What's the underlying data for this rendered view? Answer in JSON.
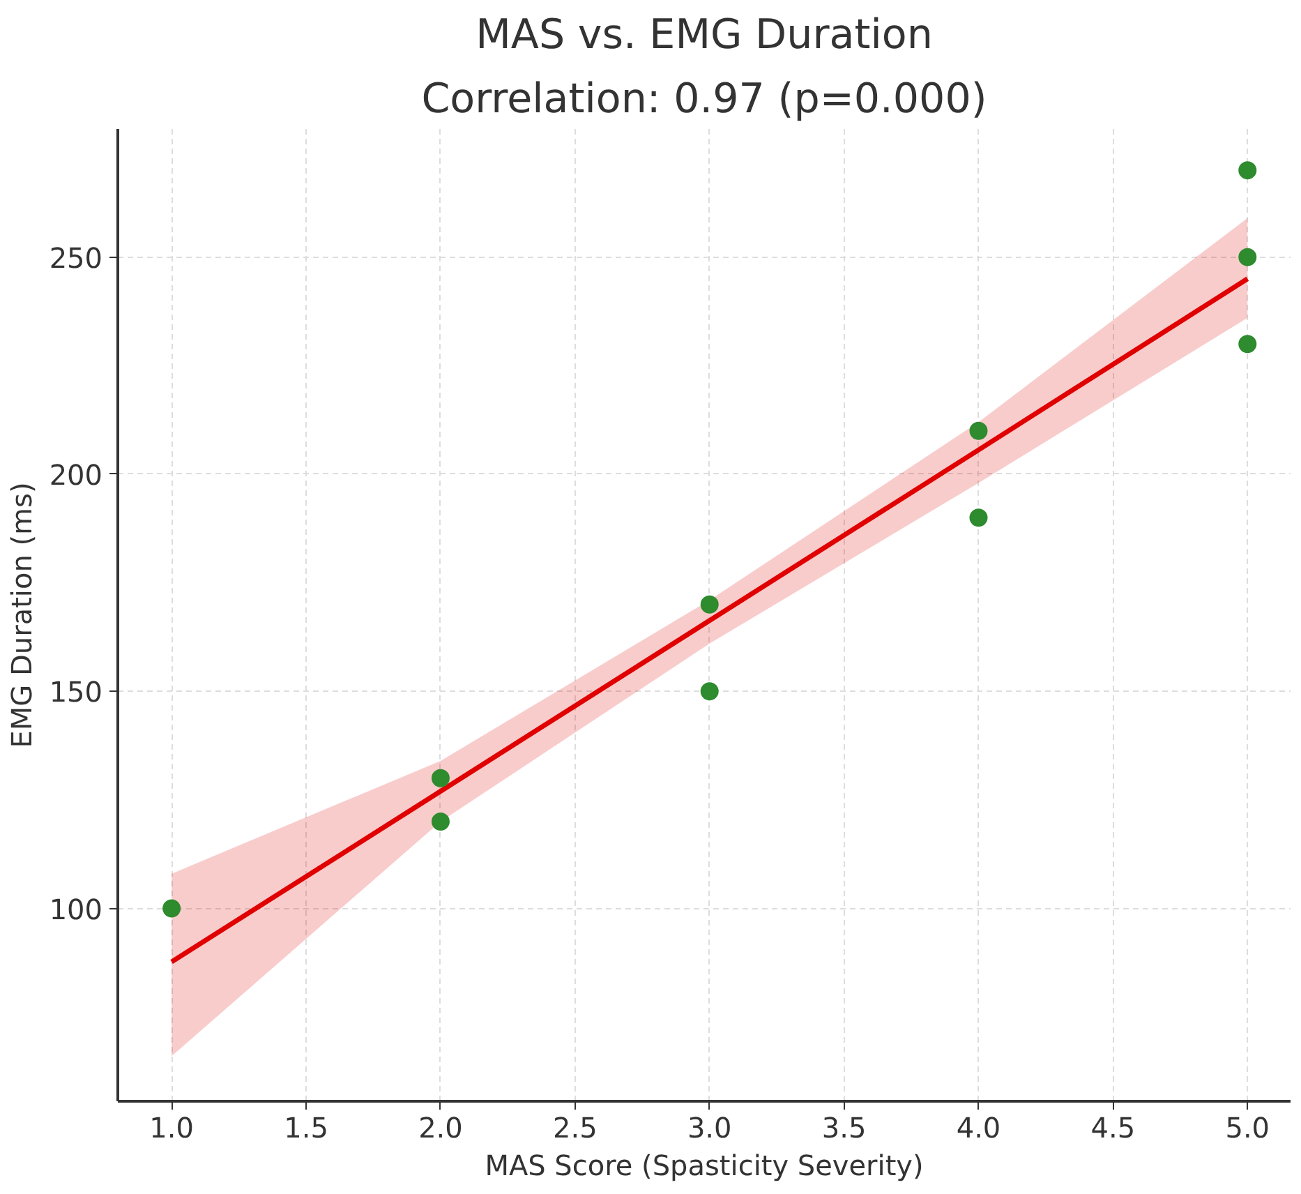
{
  "chart_data": {
    "type": "scatter",
    "title": "MAS vs. EMG Duration",
    "subtitle": "Correlation: 0.97 (p=0.000)",
    "xlabel": "MAS Score (Spasticity Severity)",
    "ylabel": "EMG Duration (ms)",
    "series": [
      {
        "color": "#2e8b2e",
        "marker": "circle",
        "x": [
          1,
          2,
          2,
          3,
          3,
          4,
          4,
          5,
          5,
          5
        ],
        "values": [
          100,
          130,
          120,
          170,
          150,
          210,
          190,
          270,
          250,
          230
        ]
      },
      {
        "type": "line",
        "color": "#e00000",
        "marker": "none",
        "line_style": "solid",
        "x": [
          1,
          2,
          3,
          4,
          5
        ],
        "values": [
          87.7,
          127,
          166.3,
          205.6,
          245
        ],
        "lower": [
          66,
          120,
          161,
          198,
          236
        ],
        "upper": [
          108,
          134,
          171,
          212,
          259
        ]
      }
    ],
    "xlim": [
      0.8,
      5.16
    ],
    "ylim": [
      55.6,
      279.5
    ],
    "xticks": [
      {
        "value": 1,
        "label": "1.0"
      },
      {
        "value": 1.5,
        "label": "1.5"
      },
      {
        "value": 2,
        "label": "2.0"
      },
      {
        "value": 2.5,
        "label": "2.5"
      },
      {
        "value": 3,
        "label": "3.0"
      },
      {
        "value": 3.5,
        "label": "3.5"
      },
      {
        "value": 4,
        "label": "4.0"
      },
      {
        "value": 4.5,
        "label": "4.5"
      },
      {
        "value": 5,
        "label": "5.0"
      }
    ],
    "yticks": [
      100,
      150,
      200,
      250
    ],
    "grid": true
  }
}
